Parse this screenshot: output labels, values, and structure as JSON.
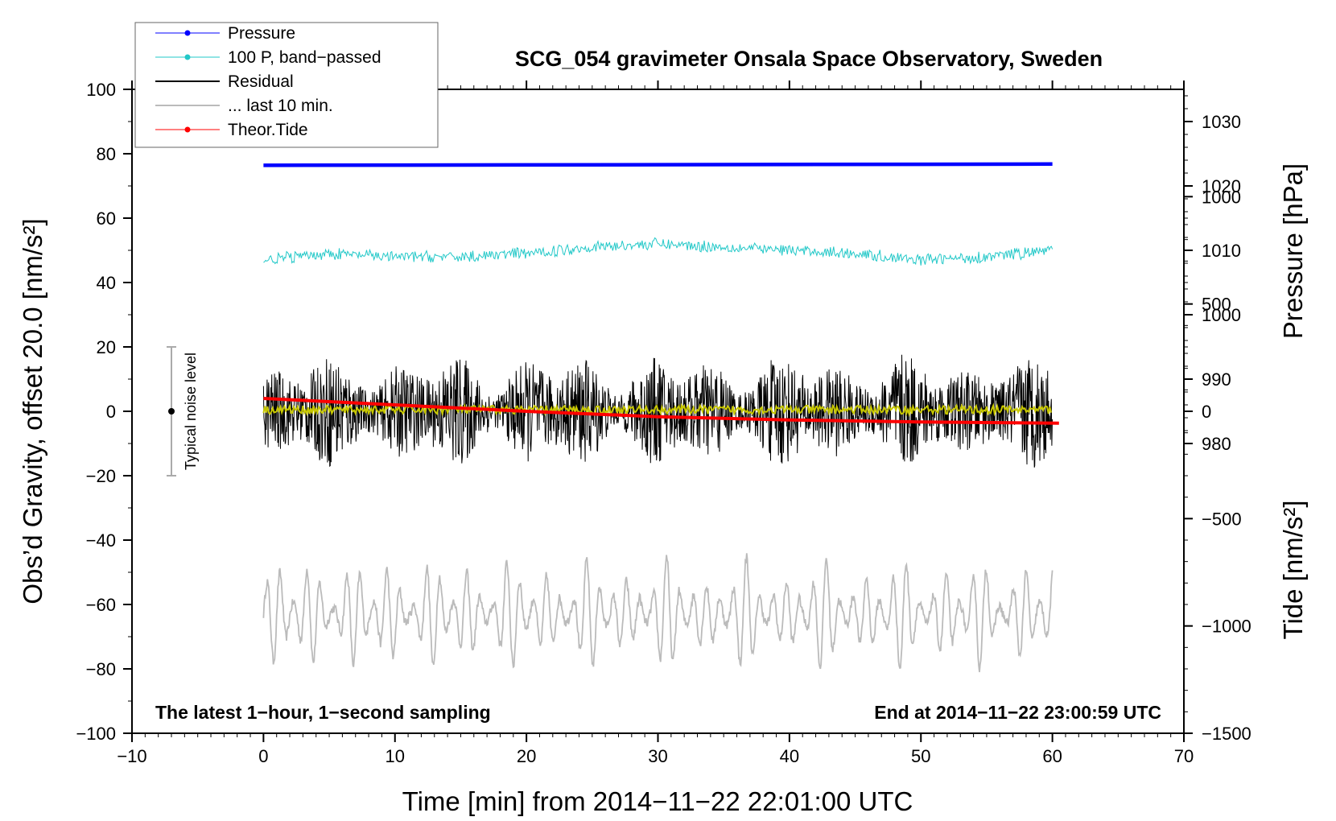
{
  "chart_data": {
    "type": "line",
    "title": "SCG_054 gravimeter Onsala Space Observatory, Sweden",
    "xlabel": "Time [min] from 2014−11−22 22:01:00 UTC",
    "ylabel": "Obs’d Gravity, offset 20.0 [nm/s²]",
    "y2label_pressure": "Pressure [hPa]",
    "y2label_tide": "Tide [nm/s²]",
    "xlim": [
      -10,
      70
    ],
    "ylim": [
      -100,
      100
    ],
    "pressure_lim": [
      935,
      1035
    ],
    "tide_lim": [
      -1500,
      1500
    ],
    "x_ticks": [
      "−10",
      "0",
      "10",
      "20",
      "30",
      "40",
      "50",
      "60",
      "70"
    ],
    "y_ticks": [
      "−100",
      "−80",
      "−60",
      "−40",
      "−20",
      "0",
      "20",
      "40",
      "60",
      "80",
      "100"
    ],
    "pressure_ticks": [
      "980",
      "990",
      "1000",
      "1010",
      "1020",
      "1030"
    ],
    "tide_ticks": [
      "−1500",
      "−1000",
      "−500",
      "0",
      "500",
      "1000"
    ],
    "legend_position": "top-left",
    "legend": [
      "Pressure",
      "100 P, band−passed",
      "Residual",
      "... last 10 min.",
      "Theor.Tide"
    ],
    "noise_label": "Typical noise level",
    "noise_range": [
      -20,
      20
    ],
    "noise_x": -7,
    "note_left": "The latest 1−hour, 1−second sampling",
    "note_right": "End at 2014−11−22 23:00:59 UTC",
    "colors": {
      "pressure": "#0000ff",
      "bandpassed": "#22c8c8",
      "residual": "#000000",
      "smoothed": "#c8c800",
      "last10": "#bbbbbb",
      "tide": "#ff0000",
      "noise": "#aaaaaa"
    },
    "series": [
      {
        "name": "Pressure",
        "x_range": [
          0,
          60
        ],
        "level_hpa": 1023.2,
        "trend_hpa": 0.2,
        "unit": "hPa"
      },
      {
        "name": "100 P, band−passed",
        "x": [
          0,
          5,
          10,
          15,
          20,
          25,
          30,
          35,
          40,
          45,
          50,
          55,
          60
        ],
        "values": [
          47,
          49,
          48,
          48,
          49,
          51,
          52,
          51,
          50,
          49,
          47,
          48,
          50
        ],
        "unit": "nm/s²"
      },
      {
        "name": "Residual",
        "x_range": [
          0,
          60
        ],
        "center": 0,
        "amplitude": 18,
        "unit": "nm/s²"
      },
      {
        "name": "... last 10 min.",
        "x_range": [
          0,
          60
        ],
        "center": -63,
        "amplitude": 18,
        "unit": "nm/s²"
      },
      {
        "name": "Theor.Tide",
        "x": [
          0,
          10,
          20,
          30,
          40,
          50,
          60.5
        ],
        "values": [
          60,
          30,
          0,
          -25,
          -40,
          -50,
          -55
        ],
        "unit": "nm/s² (tide axis)"
      }
    ]
  }
}
